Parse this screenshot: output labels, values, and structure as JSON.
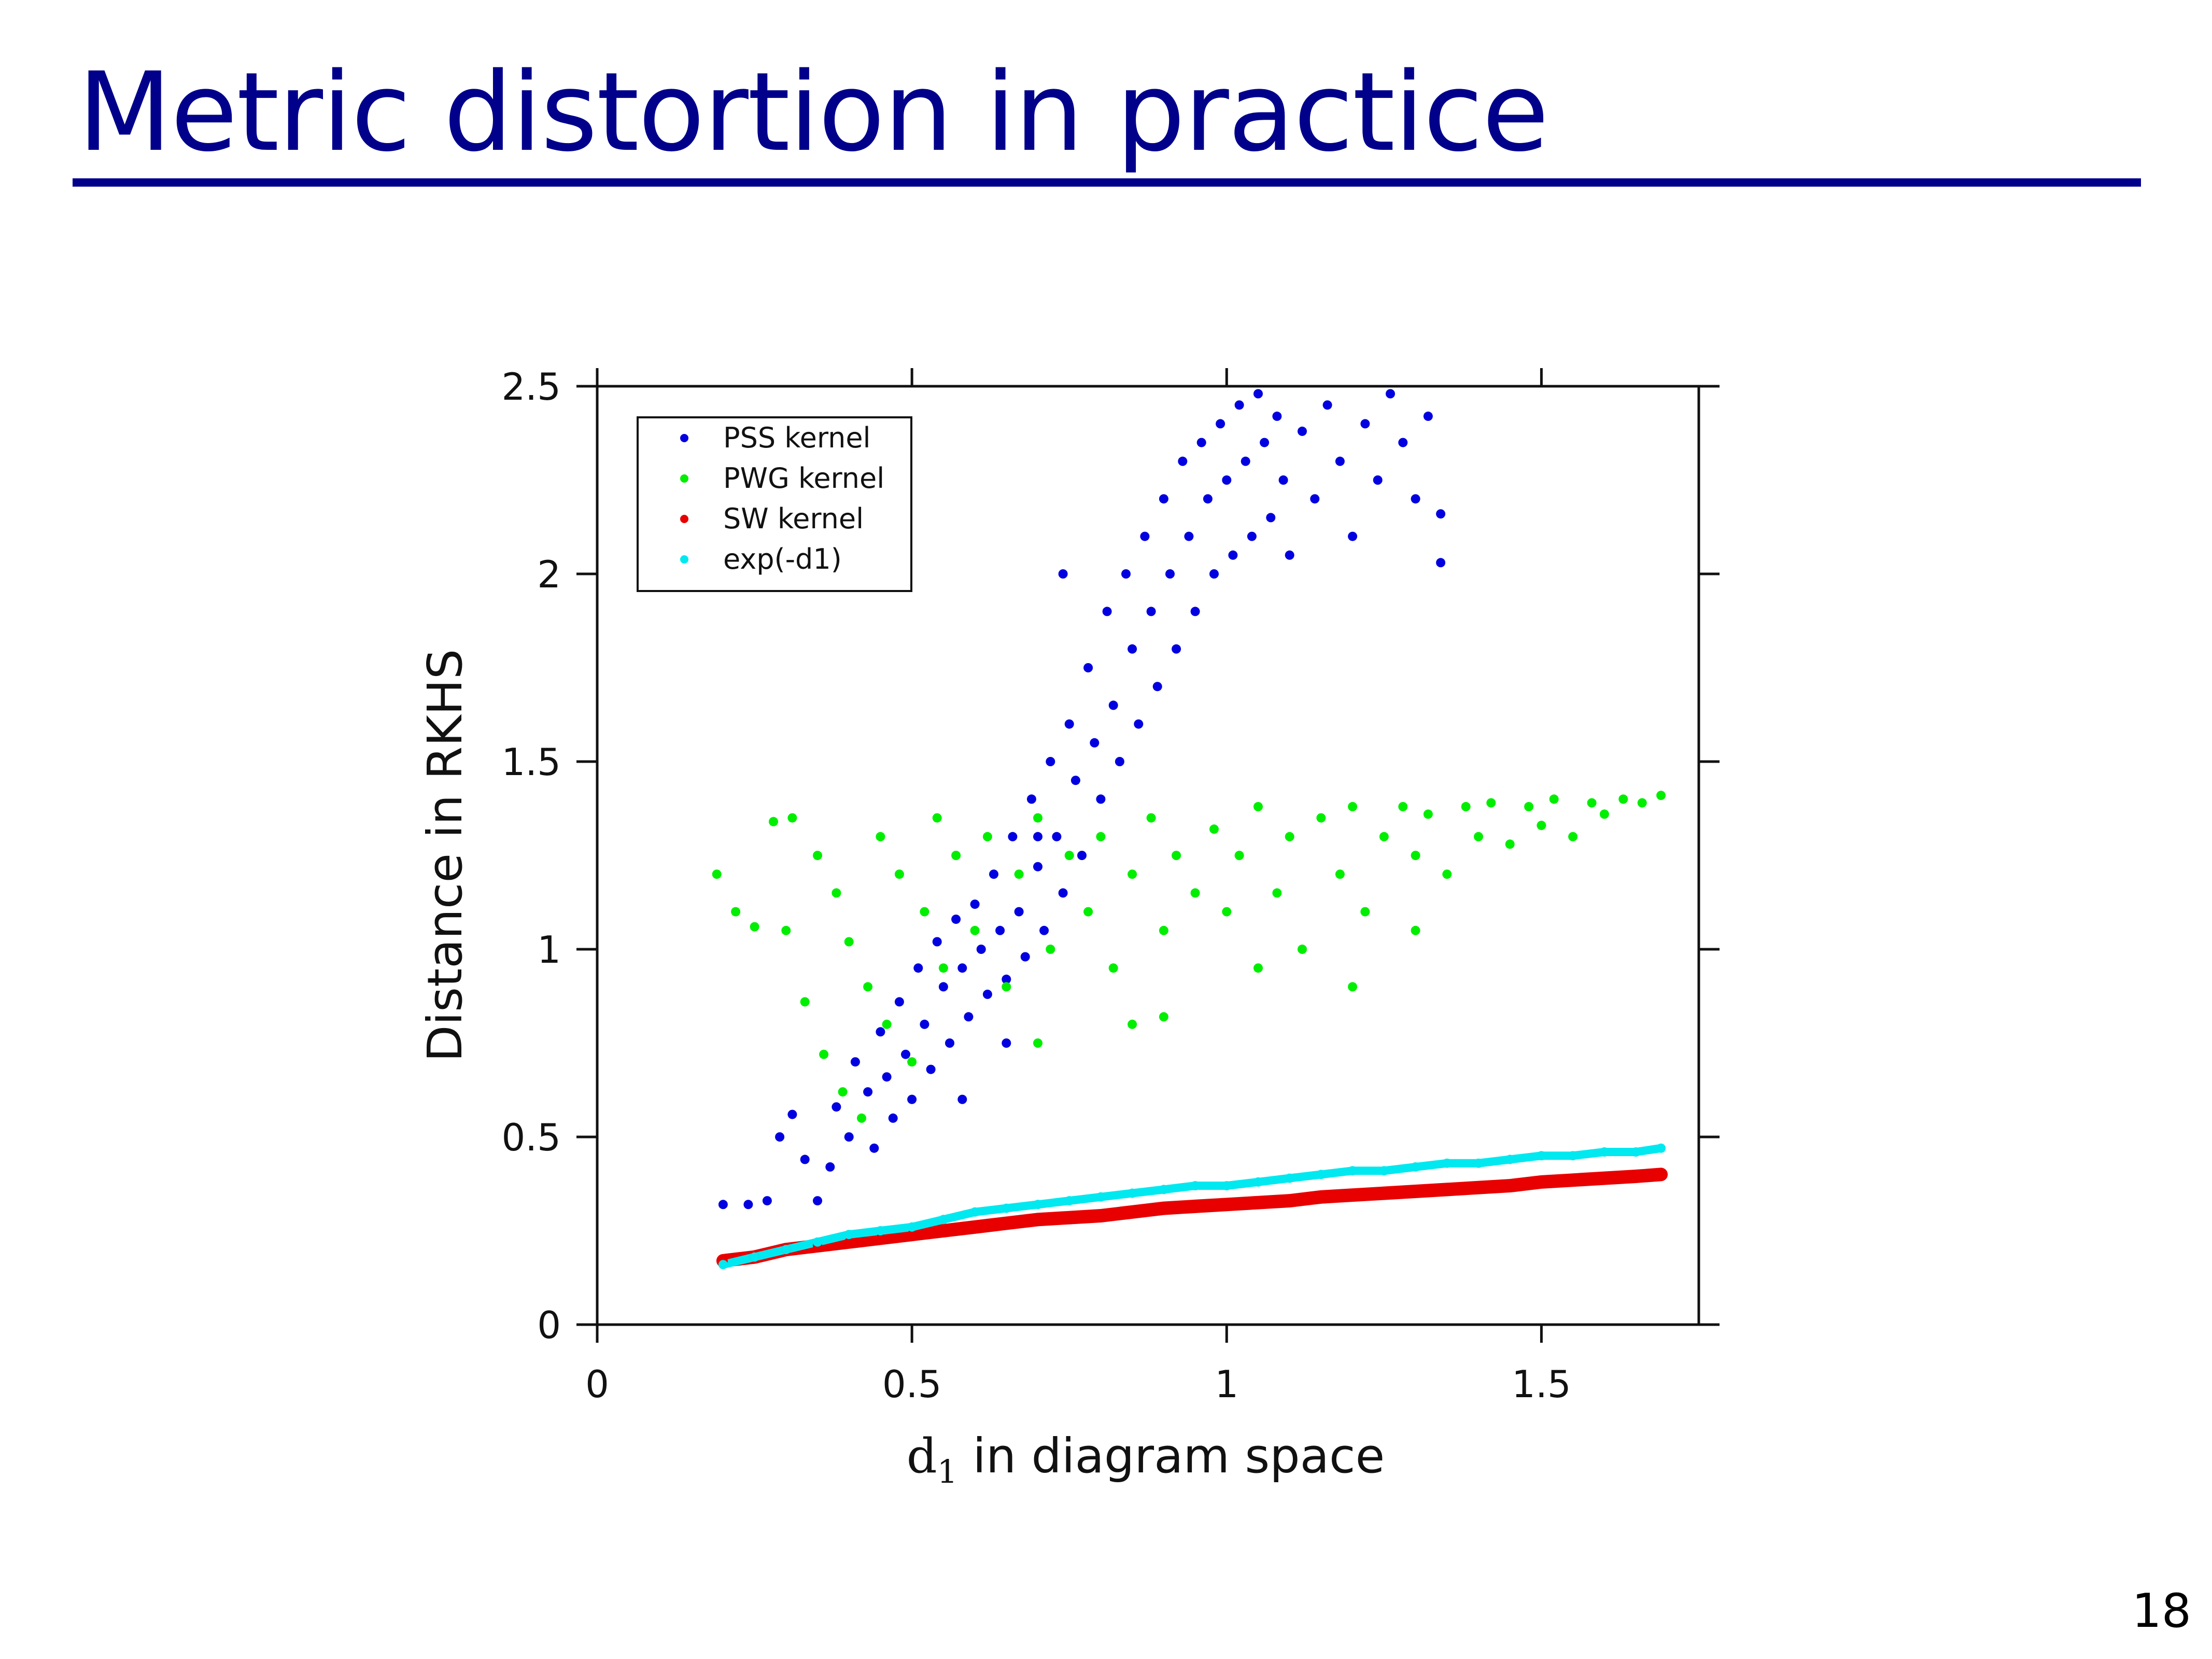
{
  "slide": {
    "title": "Metric distortion in practice",
    "page_number": "18"
  },
  "chart_data": {
    "type": "scatter",
    "title": "",
    "xlabel_base": "d",
    "xlabel_sub": "1",
    "xlabel_rest": " in diagram space",
    "ylabel": "Distance in RKHS",
    "xlim": [
      0,
      1.75
    ],
    "ylim": [
      0,
      2.5
    ],
    "x_ticks": [
      0,
      0.5,
      1,
      1.5
    ],
    "x_tick_labels": [
      "0",
      "0.5",
      "1",
      "1.5"
    ],
    "y_ticks": [
      0,
      0.5,
      1,
      1.5,
      2,
      2.5
    ],
    "y_tick_labels": [
      "0",
      "0.5",
      "1",
      "1.5",
      "2",
      "2.5"
    ],
    "grid": false,
    "legend_position": "top-left",
    "series": [
      {
        "name": "PSS kernel",
        "color": "#0000e0",
        "points": [
          [
            0.2,
            0.32
          ],
          [
            0.24,
            0.32
          ],
          [
            0.27,
            0.33
          ],
          [
            0.29,
            0.5
          ],
          [
            0.31,
            0.56
          ],
          [
            0.33,
            0.44
          ],
          [
            0.35,
            0.33
          ],
          [
            0.37,
            0.42
          ],
          [
            0.38,
            0.58
          ],
          [
            0.4,
            0.5
          ],
          [
            0.41,
            0.7
          ],
          [
            0.43,
            0.62
          ],
          [
            0.44,
            0.47
          ],
          [
            0.45,
            0.78
          ],
          [
            0.46,
            0.66
          ],
          [
            0.47,
            0.55
          ],
          [
            0.48,
            0.86
          ],
          [
            0.49,
            0.72
          ],
          [
            0.5,
            0.6
          ],
          [
            0.51,
            0.95
          ],
          [
            0.52,
            0.8
          ],
          [
            0.53,
            0.68
          ],
          [
            0.54,
            1.02
          ],
          [
            0.55,
            0.9
          ],
          [
            0.56,
            0.75
          ],
          [
            0.57,
            1.08
          ],
          [
            0.58,
            0.95
          ],
          [
            0.59,
            0.82
          ],
          [
            0.6,
            1.12
          ],
          [
            0.61,
            1.0
          ],
          [
            0.62,
            0.88
          ],
          [
            0.63,
            1.2
          ],
          [
            0.64,
            1.05
          ],
          [
            0.65,
            0.92
          ],
          [
            0.66,
            1.3
          ],
          [
            0.67,
            1.1
          ],
          [
            0.68,
            0.98
          ],
          [
            0.69,
            1.4
          ],
          [
            0.7,
            1.22
          ],
          [
            0.71,
            1.05
          ],
          [
            0.72,
            1.5
          ],
          [
            0.73,
            1.3
          ],
          [
            0.74,
            1.15
          ],
          [
            0.75,
            1.6
          ],
          [
            0.76,
            1.45
          ],
          [
            0.77,
            1.25
          ],
          [
            0.78,
            1.75
          ],
          [
            0.79,
            1.55
          ],
          [
            0.8,
            1.4
          ],
          [
            0.81,
            1.9
          ],
          [
            0.82,
            1.65
          ],
          [
            0.83,
            1.5
          ],
          [
            0.84,
            2.0
          ],
          [
            0.85,
            1.8
          ],
          [
            0.86,
            1.6
          ],
          [
            0.87,
            2.1
          ],
          [
            0.88,
            1.9
          ],
          [
            0.89,
            1.7
          ],
          [
            0.9,
            2.2
          ],
          [
            0.91,
            2.0
          ],
          [
            0.92,
            1.8
          ],
          [
            0.93,
            2.3
          ],
          [
            0.94,
            2.1
          ],
          [
            0.95,
            1.9
          ],
          [
            0.96,
            2.35
          ],
          [
            0.97,
            2.2
          ],
          [
            0.98,
            2.0
          ],
          [
            0.99,
            2.4
          ],
          [
            1.0,
            2.25
          ],
          [
            1.01,
            2.05
          ],
          [
            1.02,
            2.45
          ],
          [
            1.03,
            2.3
          ],
          [
            1.04,
            2.1
          ],
          [
            1.05,
            2.48
          ],
          [
            1.06,
            2.35
          ],
          [
            1.07,
            2.15
          ],
          [
            1.08,
            2.42
          ],
          [
            1.09,
            2.25
          ],
          [
            1.1,
            2.05
          ],
          [
            1.12,
            2.38
          ],
          [
            1.14,
            2.2
          ],
          [
            1.16,
            2.45
          ],
          [
            1.18,
            2.3
          ],
          [
            1.2,
            2.1
          ],
          [
            1.22,
            2.4
          ],
          [
            1.24,
            2.25
          ],
          [
            1.26,
            2.48
          ],
          [
            1.28,
            2.35
          ],
          [
            1.3,
            2.2
          ],
          [
            1.32,
            2.42
          ],
          [
            1.34,
            2.16
          ],
          [
            1.34,
            2.03
          ],
          [
            0.74,
            2.0
          ],
          [
            0.7,
            1.3
          ],
          [
            0.65,
            0.75
          ],
          [
            0.58,
            0.6
          ]
        ]
      },
      {
        "name": "PWG kernel",
        "color": "#00ee00",
        "points": [
          [
            0.19,
            1.2
          ],
          [
            0.22,
            1.1
          ],
          [
            0.25,
            1.06
          ],
          [
            0.28,
            1.34
          ],
          [
            0.3,
            1.05
          ],
          [
            0.31,
            1.35
          ],
          [
            0.33,
            0.86
          ],
          [
            0.35,
            1.25
          ],
          [
            0.36,
            0.72
          ],
          [
            0.38,
            1.15
          ],
          [
            0.39,
            0.62
          ],
          [
            0.4,
            1.02
          ],
          [
            0.42,
            0.55
          ],
          [
            0.43,
            0.9
          ],
          [
            0.45,
            1.3
          ],
          [
            0.46,
            0.8
          ],
          [
            0.48,
            1.2
          ],
          [
            0.5,
            0.7
          ],
          [
            0.52,
            1.1
          ],
          [
            0.54,
            1.35
          ],
          [
            0.55,
            0.95
          ],
          [
            0.57,
            1.25
          ],
          [
            0.6,
            1.05
          ],
          [
            0.62,
            1.3
          ],
          [
            0.65,
            0.9
          ],
          [
            0.67,
            1.2
          ],
          [
            0.7,
            1.35
          ],
          [
            0.72,
            1.0
          ],
          [
            0.75,
            1.25
          ],
          [
            0.78,
            1.1
          ],
          [
            0.8,
            1.3
          ],
          [
            0.82,
            0.95
          ],
          [
            0.85,
            1.2
          ],
          [
            0.88,
            1.35
          ],
          [
            0.9,
            1.05
          ],
          [
            0.92,
            1.25
          ],
          [
            0.95,
            1.15
          ],
          [
            0.98,
            1.32
          ],
          [
            1.0,
            1.1
          ],
          [
            1.02,
            1.25
          ],
          [
            1.05,
            1.38
          ],
          [
            1.08,
            1.15
          ],
          [
            1.1,
            1.3
          ],
          [
            1.12,
            1.0
          ],
          [
            1.15,
            1.35
          ],
          [
            1.18,
            1.2
          ],
          [
            1.2,
            1.38
          ],
          [
            1.22,
            1.1
          ],
          [
            1.25,
            1.3
          ],
          [
            1.28,
            1.38
          ],
          [
            1.3,
            1.25
          ],
          [
            1.32,
            1.36
          ],
          [
            1.35,
            1.2
          ],
          [
            1.38,
            1.38
          ],
          [
            1.4,
            1.3
          ],
          [
            1.42,
            1.39
          ],
          [
            1.45,
            1.28
          ],
          [
            1.48,
            1.38
          ],
          [
            1.5,
            1.33
          ],
          [
            1.52,
            1.4
          ],
          [
            1.55,
            1.3
          ],
          [
            1.58,
            1.39
          ],
          [
            1.6,
            1.36
          ],
          [
            1.63,
            1.4
          ],
          [
            1.66,
            1.39
          ],
          [
            1.69,
            1.41
          ],
          [
            0.85,
            0.8
          ],
          [
            1.05,
            0.95
          ],
          [
            1.2,
            0.9
          ],
          [
            1.3,
            1.05
          ],
          [
            0.7,
            0.75
          ],
          [
            0.9,
            0.82
          ]
        ]
      },
      {
        "name": "SW kernel",
        "color": "#e80000",
        "points": [
          [
            0.2,
            0.17
          ],
          [
            0.25,
            0.18
          ],
          [
            0.3,
            0.2
          ],
          [
            0.35,
            0.21
          ],
          [
            0.4,
            0.22
          ],
          [
            0.45,
            0.23
          ],
          [
            0.5,
            0.24
          ],
          [
            0.55,
            0.25
          ],
          [
            0.6,
            0.26
          ],
          [
            0.65,
            0.27
          ],
          [
            0.7,
            0.28
          ],
          [
            0.75,
            0.285
          ],
          [
            0.8,
            0.29
          ],
          [
            0.85,
            0.3
          ],
          [
            0.9,
            0.31
          ],
          [
            0.95,
            0.315
          ],
          [
            1.0,
            0.32
          ],
          [
            1.05,
            0.325
          ],
          [
            1.1,
            0.33
          ],
          [
            1.15,
            0.34
          ],
          [
            1.2,
            0.345
          ],
          [
            1.25,
            0.35
          ],
          [
            1.3,
            0.355
          ],
          [
            1.35,
            0.36
          ],
          [
            1.4,
            0.365
          ],
          [
            1.45,
            0.37
          ],
          [
            1.5,
            0.38
          ],
          [
            1.55,
            0.385
          ],
          [
            1.6,
            0.39
          ],
          [
            1.65,
            0.395
          ],
          [
            1.69,
            0.4
          ]
        ]
      },
      {
        "name": "exp(-d1)",
        "color": "#00e8f0",
        "points": [
          [
            0.2,
            0.16
          ],
          [
            0.25,
            0.18
          ],
          [
            0.3,
            0.2
          ],
          [
            0.35,
            0.22
          ],
          [
            0.4,
            0.24
          ],
          [
            0.45,
            0.25
          ],
          [
            0.5,
            0.26
          ],
          [
            0.55,
            0.28
          ],
          [
            0.6,
            0.3
          ],
          [
            0.65,
            0.31
          ],
          [
            0.7,
            0.32
          ],
          [
            0.75,
            0.33
          ],
          [
            0.8,
            0.34
          ],
          [
            0.85,
            0.35
          ],
          [
            0.9,
            0.36
          ],
          [
            0.95,
            0.37
          ],
          [
            1.0,
            0.37
          ],
          [
            1.05,
            0.38
          ],
          [
            1.1,
            0.39
          ],
          [
            1.15,
            0.4
          ],
          [
            1.2,
            0.41
          ],
          [
            1.25,
            0.41
          ],
          [
            1.3,
            0.42
          ],
          [
            1.35,
            0.43
          ],
          [
            1.4,
            0.43
          ],
          [
            1.45,
            0.44
          ],
          [
            1.5,
            0.45
          ],
          [
            1.55,
            0.45
          ],
          [
            1.6,
            0.46
          ],
          [
            1.65,
            0.46
          ],
          [
            1.69,
            0.47
          ]
        ]
      }
    ]
  }
}
